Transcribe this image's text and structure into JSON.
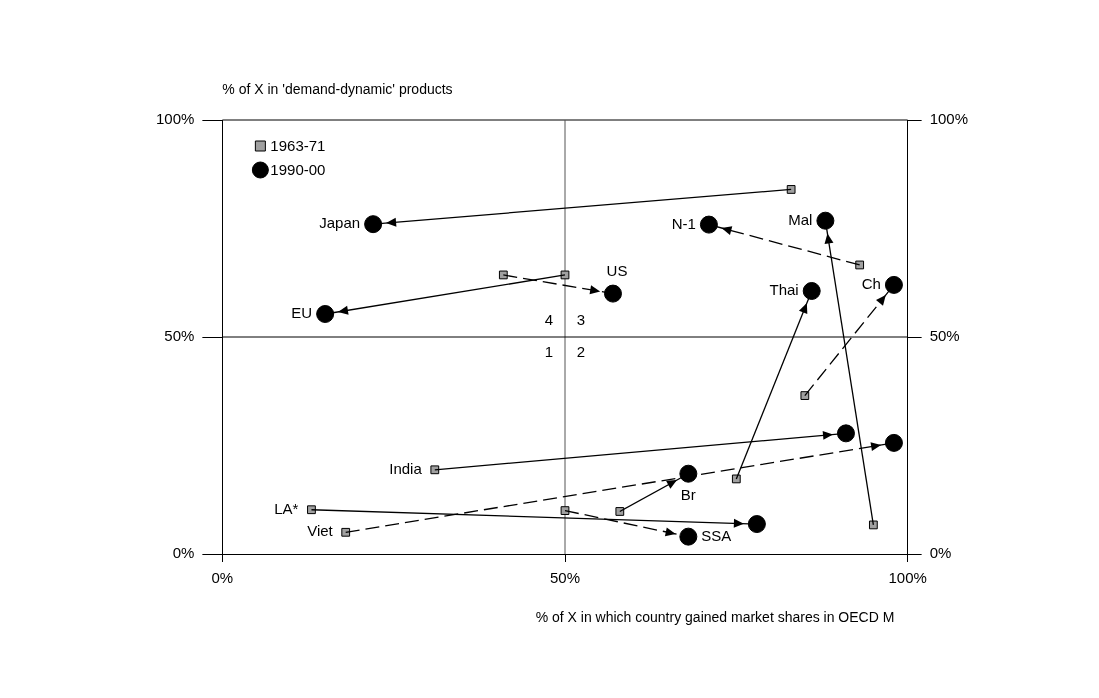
{
  "chart_data": {
    "type": "scatter",
    "xlabel": "% of X in which country gained market shares in OECD M",
    "ylabel": "% of X in 'demand-dynamic' products",
    "xlim": [
      0,
      100
    ],
    "xticks": [
      {
        "value": 0,
        "label": "0%"
      },
      {
        "value": 50,
        "label": "50%"
      },
      {
        "value": 100,
        "label": "100%"
      }
    ],
    "ylim": [
      0,
      100
    ],
    "yticks": [
      {
        "value": 0,
        "label": "0%"
      },
      {
        "value": 50,
        "label": "50%"
      },
      {
        "value": 100,
        "label": "100%"
      }
    ],
    "y2lim": [
      0,
      100
    ],
    "y2ticks": [
      {
        "value": 0,
        "label": "0%"
      },
      {
        "value": 50,
        "label": "50%"
      },
      {
        "value": 100,
        "label": "100%"
      }
    ],
    "grid": false,
    "legend": "top left",
    "ref_lines": [
      {
        "axis": "x",
        "value": 50,
        "color": "#555555"
      },
      {
        "axis": "y",
        "value": 50,
        "color": "#000000"
      }
    ],
    "series": [
      {
        "type": "line",
        "color": "#000000",
        "line_style": "solid",
        "x": [
          83,
          22
        ],
        "values": [
          84,
          76
        ]
      },
      {
        "type": "line",
        "color": "#000000",
        "line_style": "solid",
        "x": [
          50,
          15
        ],
        "values": [
          64.3,
          55.3
        ]
      },
      {
        "type": "line",
        "color": "#000000",
        "line_style": "dashed",
        "x": [
          41,
          57
        ],
        "values": [
          64.3,
          60
        ]
      },
      {
        "type": "line",
        "color": "#000000",
        "line_style": "dashed",
        "x": [
          93,
          71
        ],
        "values": [
          66.6,
          75.9
        ]
      },
      {
        "type": "line",
        "color": "#000000",
        "line_style": "solid",
        "x": [
          95,
          88
        ],
        "values": [
          6.7,
          76.8
        ]
      },
      {
        "type": "line",
        "color": "#000000",
        "line_style": "solid",
        "x": [
          75,
          86
        ],
        "values": [
          17.3,
          60.6
        ]
      },
      {
        "type": "line",
        "color": "#000000",
        "line_style": "dashed",
        "x": [
          85,
          98
        ],
        "values": [
          36.5,
          62
        ]
      },
      {
        "type": "line",
        "color": "#000000",
        "line_style": "solid",
        "x": [
          31,
          91
        ],
        "values": [
          19.4,
          27.8
        ]
      },
      {
        "type": "line",
        "color": "#000000",
        "line_style": "dashed",
        "x": [
          18,
          98
        ],
        "values": [
          5,
          25.6
        ]
      },
      {
        "type": "line",
        "color": "#000000",
        "line_style": "solid",
        "x": [
          13,
          78
        ],
        "values": [
          10.2,
          6.9
        ]
      },
      {
        "type": "line",
        "color": "#000000",
        "line_style": "solid",
        "x": [
          58,
          68
        ],
        "values": [
          9.8,
          18.5
        ]
      },
      {
        "type": "line",
        "color": "#000000",
        "line_style": "dashed",
        "x": [
          50,
          68
        ],
        "values": [
          10,
          4
        ]
      },
      {
        "name": "1963-71",
        "type": "scatter",
        "marker": "square",
        "color": "#a0a0a0",
        "x": [
          83,
          50,
          41,
          93,
          95,
          75,
          85,
          31,
          18,
          13,
          58,
          50
        ],
        "values": [
          84,
          64.3,
          64.3,
          66.6,
          6.7,
          17.3,
          36.5,
          19.4,
          5,
          10.2,
          9.8,
          10
        ]
      },
      {
        "name": "1990-00",
        "type": "scatter",
        "marker": "circle",
        "color": "#000000",
        "x": [
          22,
          15,
          57,
          71,
          88,
          86,
          98,
          91,
          98,
          78,
          68,
          68
        ],
        "values": [
          76,
          55.3,
          60,
          75.9,
          76.8,
          60.6,
          62,
          27.8,
          25.6,
          6.9,
          18.5,
          4
        ]
      }
    ],
    "annotations": [
      {
        "text": "Japan",
        "x": 22,
        "y": 76
      },
      {
        "text": "EU",
        "x": 15,
        "y": 55.3
      },
      {
        "text": "US",
        "x": 57,
        "y": 60
      },
      {
        "text": "N-1",
        "x": 71,
        "y": 75.9
      },
      {
        "text": "Mal",
        "x": 88,
        "y": 76.8
      },
      {
        "text": "Thai",
        "x": 86,
        "y": 60.6
      },
      {
        "text": "Ch",
        "x": 98,
        "y": 62
      },
      {
        "text": "India",
        "x": 31,
        "y": 19.4
      },
      {
        "text": "LA*",
        "x": 13,
        "y": 10.2
      },
      {
        "text": "Viet",
        "x": 18,
        "y": 5
      },
      {
        "text": "Br",
        "x": 68,
        "y": 18.5
      },
      {
        "text": "SSA",
        "x": 68,
        "y": 4
      },
      "4",
      "3",
      "1",
      "2"
    ]
  }
}
